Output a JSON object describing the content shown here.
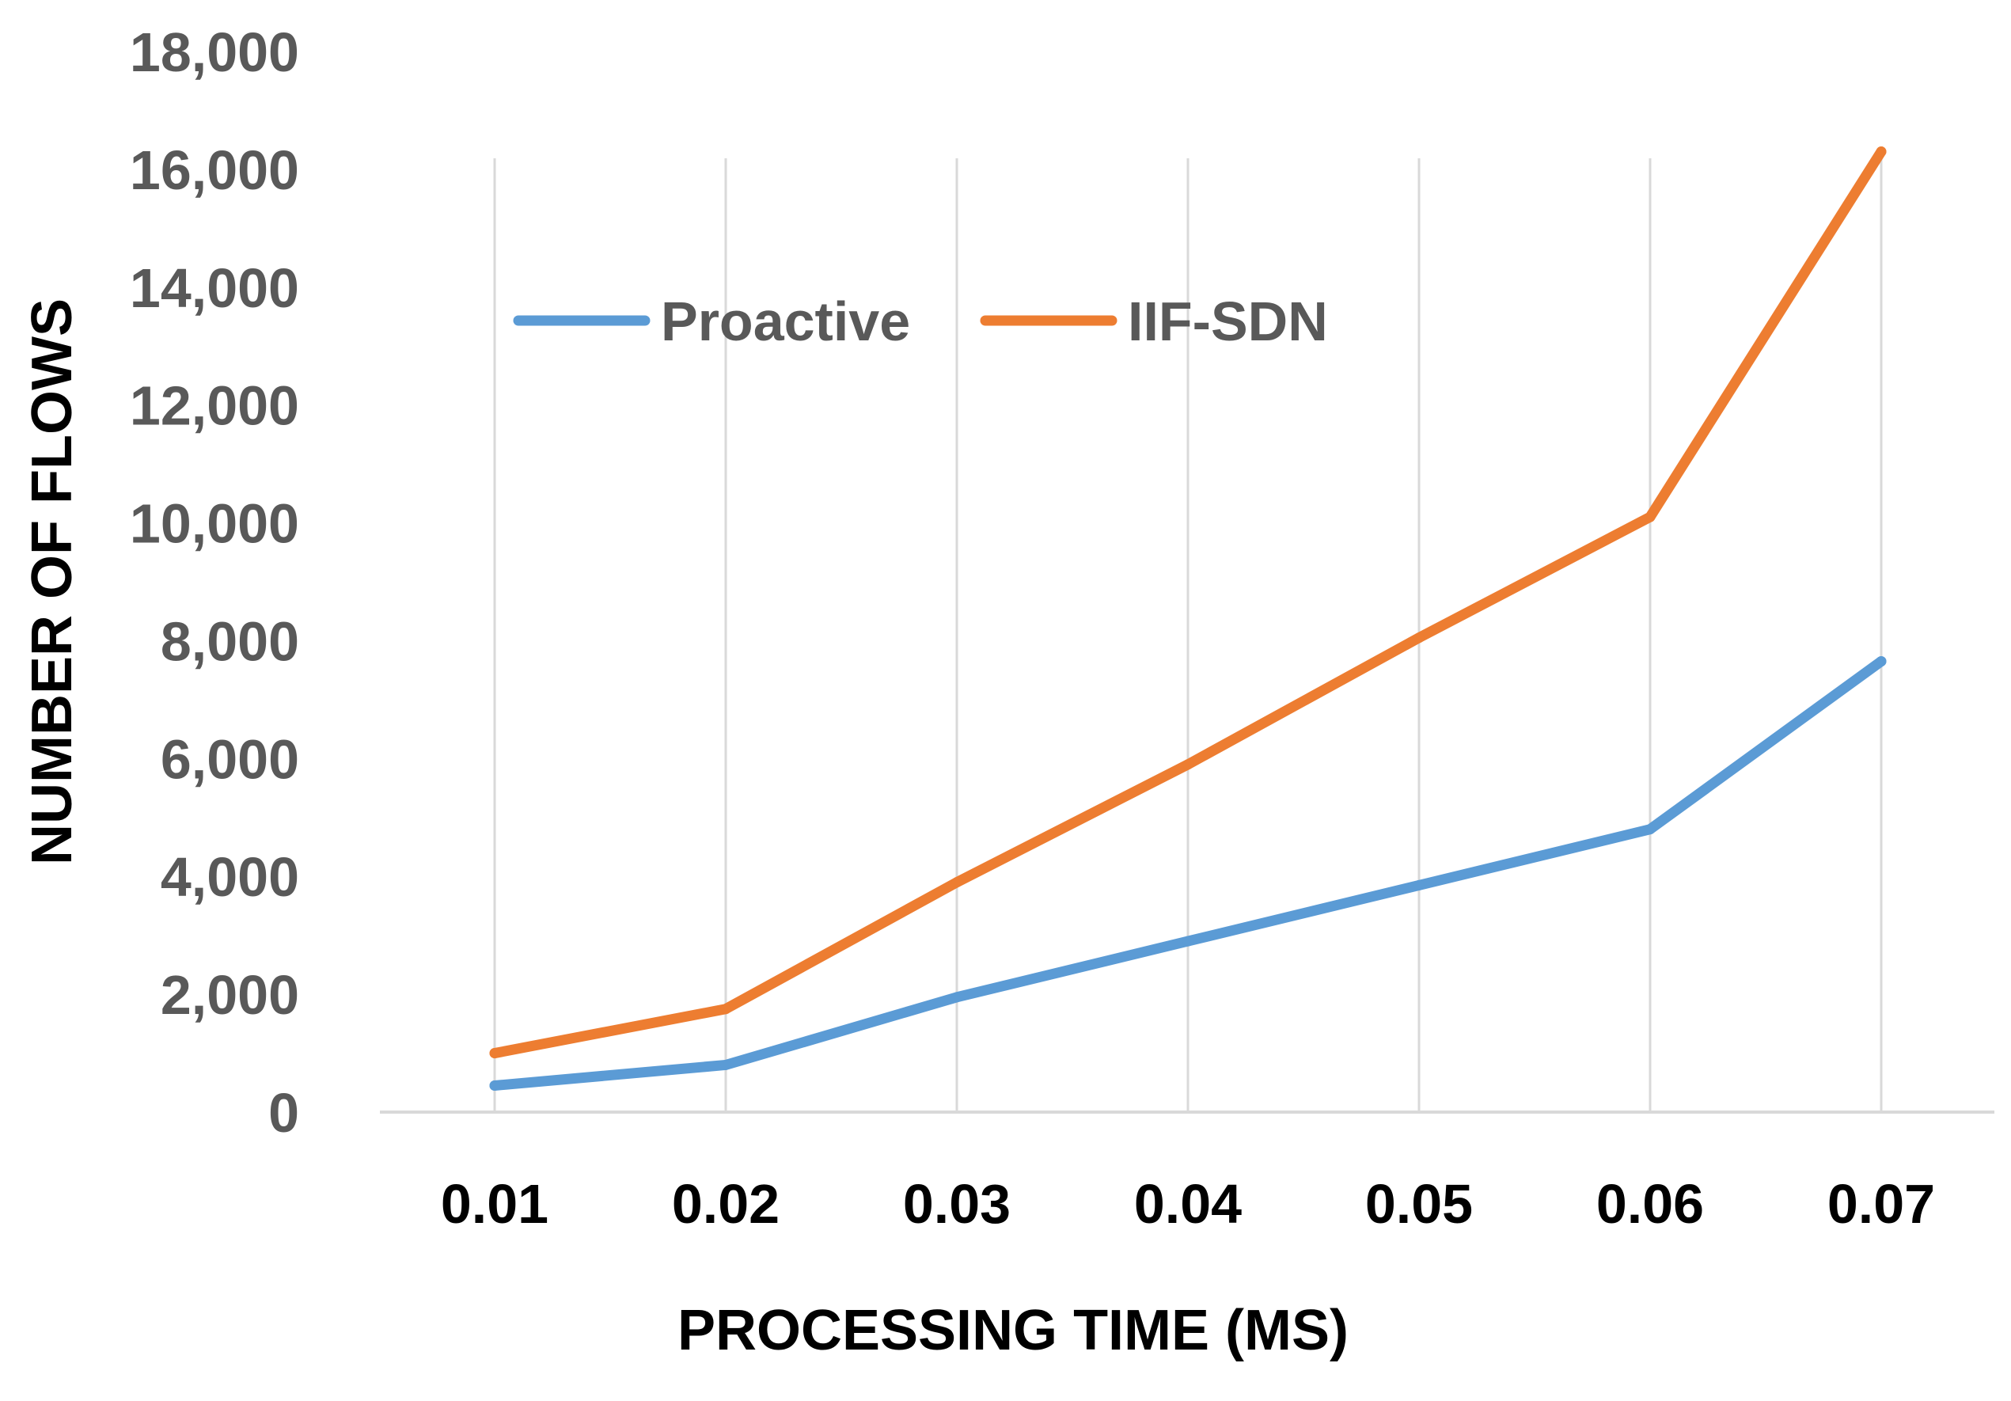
{
  "chart_data": {
    "type": "line",
    "title": "",
    "xlabel": "PROCESSING TIME (MS)",
    "ylabel": "NUMBER OF FLOWS",
    "x": [
      "0.01",
      "0.02",
      "0.03",
      "0.04",
      "0.05",
      "0.06",
      "0.07"
    ],
    "yticks": [
      "0",
      "2,000",
      "4,000",
      "6,000",
      "8,000",
      "10,000",
      "12,000",
      "14,000",
      "16,000",
      "18,000"
    ],
    "ylim": [
      0,
      18000
    ],
    "grid": "vertical",
    "legend_position": "top-left",
    "series": [
      {
        "name": "Proactive",
        "color": "#5B9BD5",
        "values": [
          450,
          800,
          1950,
          2900,
          3850,
          4800,
          7650
        ]
      },
      {
        "name": "IIF-SDN",
        "color": "#ED7D31",
        "values": [
          1000,
          1750,
          3900,
          5900,
          8050,
          10100,
          16300
        ]
      }
    ]
  }
}
